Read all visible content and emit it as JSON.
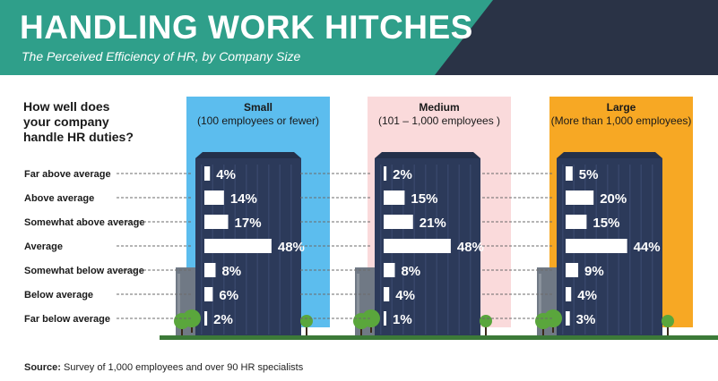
{
  "header": {
    "title": "HANDLING WORK HITCHES",
    "subtitle": "The Perceived Efficiency of HR, by Company Size"
  },
  "question": [
    "How well does",
    "your company",
    "handle HR duties?"
  ],
  "source": {
    "label": "Source:",
    "text": "Survey of 1,000 employees and over 90 HR specialists"
  },
  "colors": {
    "banner": "#2f9f8a",
    "banner_dark": "#2a3346",
    "building": "#2c3a5a",
    "small": "#5cbdee",
    "medium": "#fadadb",
    "large": "#f7a824",
    "ground": "#3c7a38",
    "tree": "#5aa63c"
  },
  "chart_data": {
    "type": "bar",
    "categories": [
      "Far above average",
      "Above average",
      "Somewhat above average",
      "Average",
      "Somewhat below average",
      "Below average",
      "Far below average"
    ],
    "series": [
      {
        "name": "Small",
        "detail": "(100 employees or fewer)",
        "values": [
          4,
          14,
          17,
          48,
          8,
          6,
          2
        ]
      },
      {
        "name": "Medium",
        "detail": "(101 – 1,000 employees )",
        "values": [
          2,
          15,
          21,
          48,
          8,
          4,
          1
        ]
      },
      {
        "name": "Large",
        "detail": "(More than 1,000 employees)",
        "values": [
          5,
          20,
          15,
          44,
          9,
          4,
          3
        ]
      }
    ],
    "value_suffix": "%",
    "xlim": [
      0,
      50
    ]
  }
}
